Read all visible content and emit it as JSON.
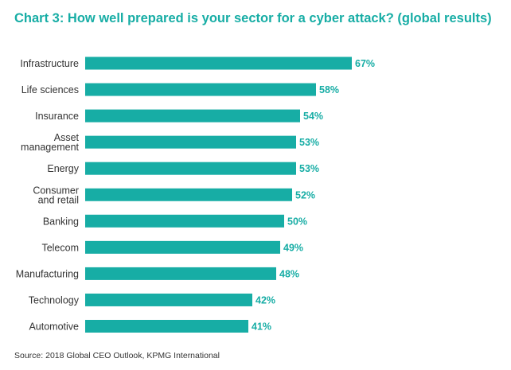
{
  "colors": {
    "accent": "#17ADA5",
    "title": "#17ADA5",
    "bar": "#17ADA5",
    "value_label": "#17ADA5",
    "category_label": "#333333"
  },
  "title": "Chart 3: How well prepared is your sector for a cyber attack? (global results)",
  "source": "Source: 2018 Global CEO Outlook, KPMG International",
  "chart_data": {
    "type": "bar",
    "orientation": "horizontal",
    "title": "Chart 3: How well prepared is your sector for a cyber attack? (global results)",
    "xlabel": "",
    "ylabel": "",
    "unit": "%",
    "grid": false,
    "legend": "none",
    "xlim": [
      0,
      100
    ],
    "categories": [
      "Infrastructure",
      "Life sciences",
      "Insurance",
      "Asset management",
      "Energy",
      "Consumer and retail",
      "Banking",
      "Telecom",
      "Manufacturing",
      "Technology",
      "Automotive"
    ],
    "category_lines": [
      [
        "Infrastructure"
      ],
      [
        "Life sciences"
      ],
      [
        "Insurance"
      ],
      [
        "Asset",
        "management"
      ],
      [
        "Energy"
      ],
      [
        "Consumer",
        "and retail"
      ],
      [
        "Banking"
      ],
      [
        "Telecom"
      ],
      [
        "Manufacturing"
      ],
      [
        "Technology"
      ],
      [
        "Automotive"
      ]
    ],
    "values": [
      67,
      58,
      54,
      53,
      53,
      52,
      50,
      49,
      48,
      42,
      41
    ],
    "value_labels": [
      "67%",
      "58%",
      "54%",
      "53%",
      "53%",
      "52%",
      "50%",
      "49%",
      "48%",
      "42%",
      "41%"
    ]
  }
}
